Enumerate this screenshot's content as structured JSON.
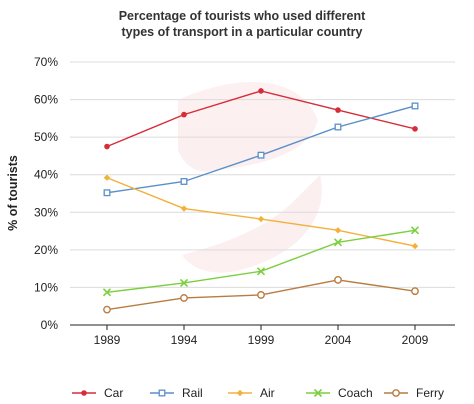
{
  "chart_data": {
    "type": "line",
    "title_lines": [
      "Percentage of tourists who used different",
      "types of transport in a particular country"
    ],
    "xlabel": "",
    "ylabel": "% of tourists",
    "categories": [
      "1989",
      "1994",
      "1999",
      "2004",
      "2009"
    ],
    "ylim": [
      0,
      70
    ],
    "yticks": [
      0,
      10,
      20,
      30,
      40,
      50,
      60,
      70
    ],
    "ytick_labels": [
      "0%",
      "10%",
      "20%",
      "30%",
      "40%",
      "50%",
      "60%",
      "70%"
    ],
    "grid": true,
    "legend_position": "bottom",
    "series": [
      {
        "name": "Car",
        "values": [
          47.5,
          56,
          62.3,
          57.2,
          52.2
        ],
        "color": "#d62c3a",
        "marker": "dot"
      },
      {
        "name": "Rail",
        "values": [
          35.2,
          38.2,
          45.2,
          52.7,
          58.3
        ],
        "color": "#5b8fc9",
        "marker": "square"
      },
      {
        "name": "Air",
        "values": [
          39.2,
          31,
          28.2,
          25.2,
          21
        ],
        "color": "#f3b03a",
        "marker": "diamond"
      },
      {
        "name": "Coach",
        "values": [
          8.7,
          11.2,
          14.3,
          22,
          25.2
        ],
        "color": "#7ccf3e",
        "marker": "x"
      },
      {
        "name": "Ferry",
        "values": [
          4.1,
          7.2,
          8,
          12,
          9
        ],
        "color": "#b97b40",
        "marker": "circle"
      }
    ]
  }
}
